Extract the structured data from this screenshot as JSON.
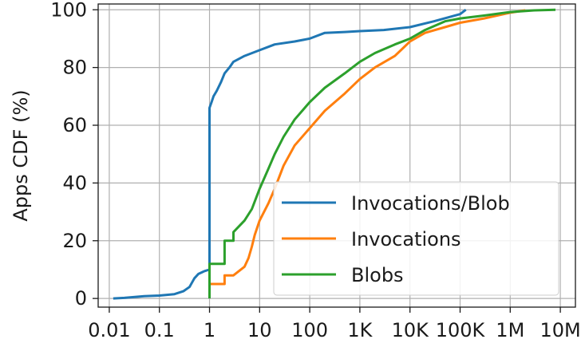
{
  "chart_data": {
    "type": "line",
    "title": "",
    "xlabel": "",
    "ylabel": "Apps CDF (%)",
    "x_scale": "log",
    "xlim": [
      0.006,
      20000000
    ],
    "ylim": [
      -3,
      102
    ],
    "grid": true,
    "legend_position": "lower-right",
    "x_ticks": [
      {
        "value": 0.01,
        "label": "0.01"
      },
      {
        "value": 0.1,
        "label": "0.1"
      },
      {
        "value": 1,
        "label": "1"
      },
      {
        "value": 10,
        "label": "10"
      },
      {
        "value": 100,
        "label": "100"
      },
      {
        "value": 1000,
        "label": "1K"
      },
      {
        "value": 10000,
        "label": "10K"
      },
      {
        "value": 100000,
        "label": "100K"
      },
      {
        "value": 1000000,
        "label": "1M"
      },
      {
        "value": 10000000,
        "label": "10M"
      }
    ],
    "y_ticks": [
      {
        "value": 0,
        "label": "0"
      },
      {
        "value": 20,
        "label": "20"
      },
      {
        "value": 40,
        "label": "40"
      },
      {
        "value": 60,
        "label": "60"
      },
      {
        "value": 80,
        "label": "80"
      },
      {
        "value": 100,
        "label": "100"
      }
    ],
    "series": [
      {
        "name": "Invocations/Blob",
        "color": "#1f77b4",
        "points": [
          [
            0.012,
            0
          ],
          [
            0.02,
            0.2
          ],
          [
            0.05,
            0.8
          ],
          [
            0.1,
            1
          ],
          [
            0.2,
            1.5
          ],
          [
            0.3,
            2.5
          ],
          [
            0.4,
            4
          ],
          [
            0.5,
            7
          ],
          [
            0.6,
            8.5
          ],
          [
            0.8,
            9.5
          ],
          [
            0.99,
            10
          ],
          [
            1,
            10
          ],
          [
            1,
            30
          ],
          [
            1,
            55
          ],
          [
            1,
            66
          ],
          [
            1.1,
            68
          ],
          [
            1.2,
            70
          ],
          [
            1.4,
            72
          ],
          [
            1.7,
            75
          ],
          [
            2,
            78
          ],
          [
            2.5,
            80
          ],
          [
            3,
            82
          ],
          [
            5,
            84
          ],
          [
            10,
            86
          ],
          [
            20,
            88
          ],
          [
            50,
            89
          ],
          [
            100,
            90
          ],
          [
            200,
            92
          ],
          [
            500,
            92.3
          ],
          [
            1000,
            92.6
          ],
          [
            3000,
            93
          ],
          [
            10000,
            94
          ],
          [
            30000,
            96
          ],
          [
            100000,
            98.5
          ],
          [
            130000,
            100
          ]
        ]
      },
      {
        "name": "Invocations",
        "color": "#ff7f0e",
        "points": [
          [
            1,
            5
          ],
          [
            2,
            5
          ],
          [
            2,
            8
          ],
          [
            3,
            8
          ],
          [
            5,
            11
          ],
          [
            6,
            14
          ],
          [
            7,
            18
          ],
          [
            8,
            22
          ],
          [
            10,
            27
          ],
          [
            15,
            33
          ],
          [
            20,
            38
          ],
          [
            30,
            46
          ],
          [
            50,
            53
          ],
          [
            100,
            59
          ],
          [
            200,
            65
          ],
          [
            500,
            71
          ],
          [
            1000,
            76
          ],
          [
            2000,
            80
          ],
          [
            5000,
            84
          ],
          [
            10000,
            89
          ],
          [
            20000,
            92
          ],
          [
            50000,
            94
          ],
          [
            100000,
            95.5
          ],
          [
            300000,
            97
          ],
          [
            1000000,
            99
          ],
          [
            2000000,
            99.8
          ]
        ]
      },
      {
        "name": "Blobs",
        "color": "#2ca02c",
        "points": [
          [
            1,
            0
          ],
          [
            1,
            12
          ],
          [
            2,
            12
          ],
          [
            2,
            20
          ],
          [
            3,
            20
          ],
          [
            3,
            23
          ],
          [
            5,
            27
          ],
          [
            7,
            31
          ],
          [
            10,
            38
          ],
          [
            15,
            45
          ],
          [
            20,
            50
          ],
          [
            30,
            56
          ],
          [
            50,
            62
          ],
          [
            100,
            68
          ],
          [
            200,
            73
          ],
          [
            500,
            78
          ],
          [
            1000,
            82
          ],
          [
            2000,
            85
          ],
          [
            5000,
            88
          ],
          [
            10000,
            90
          ],
          [
            20000,
            93
          ],
          [
            50000,
            96
          ],
          [
            100000,
            97
          ],
          [
            300000,
            98
          ],
          [
            1000000,
            99.2
          ],
          [
            3000000,
            99.8
          ],
          [
            8000000,
            100
          ]
        ]
      }
    ]
  }
}
